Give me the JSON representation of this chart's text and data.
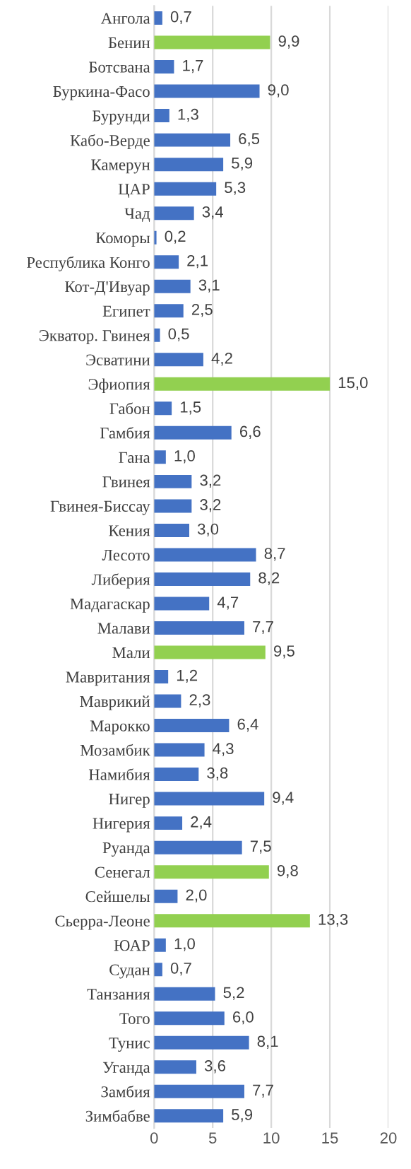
{
  "chart_data": {
    "type": "bar",
    "orientation": "horizontal",
    "categories": [
      "Ангола",
      "Бенин",
      "Ботсвана",
      "Буркина-Фасо",
      "Бурунди",
      "Кабо-Верде",
      "Камерун",
      "ЦАР",
      "Чад",
      "Коморы",
      "Республика Конго",
      "Кот-Д'Ивуар",
      "Египет",
      "Экватор. Гвинея",
      "Эсватини",
      "Эфиопия",
      "Габон",
      "Гамбия",
      "Гана",
      "Гвинея",
      "Гвинея-Биссау",
      "Кения",
      "Лесото",
      "Либерия",
      "Мадагаскар",
      "Малави",
      "Мали",
      "Мавритания",
      "Маврикий",
      "Марокко",
      "Мозамбик",
      "Намибия",
      "Нигер",
      "Нигерия",
      "Руанда",
      "Сенегал",
      "Сейшелы",
      "Сьерра-Леоне",
      "ЮАР",
      "Судан",
      "Танзания",
      "Того",
      "Тунис",
      "Уганда",
      "Замбия",
      "Зимбабве"
    ],
    "values": [
      0.7,
      9.9,
      1.7,
      9.0,
      1.3,
      6.5,
      5.9,
      5.3,
      3.4,
      0.2,
      2.1,
      3.1,
      2.5,
      0.5,
      4.2,
      15.0,
      1.5,
      6.6,
      1.0,
      3.2,
      3.2,
      3.0,
      8.7,
      8.2,
      4.7,
      7.7,
      9.5,
      1.2,
      2.3,
      6.4,
      4.3,
      3.8,
      9.4,
      2.4,
      7.5,
      9.8,
      2.0,
      13.3,
      1.0,
      0.7,
      5.2,
      6.0,
      8.1,
      3.6,
      7.7,
      5.9
    ],
    "value_labels": [
      "0,7",
      "9,9",
      "1,7",
      "9,0",
      "1,3",
      "6,5",
      "5,9",
      "5,3",
      "3,4",
      "0,2",
      "2,1",
      "3,1",
      "2,5",
      "0,5",
      "4,2",
      "15,0",
      "1,5",
      "6,6",
      "1,0",
      "3,2",
      "3,2",
      "3,0",
      "8,7",
      "8,2",
      "4,7",
      "7,7",
      "9,5",
      "1,2",
      "2,3",
      "6,4",
      "4,3",
      "3,8",
      "9,4",
      "2,4",
      "7,5",
      "9,8",
      "2,0",
      "13,3",
      "1,0",
      "0,7",
      "5,2",
      "6,0",
      "8,1",
      "3,6",
      "7,7",
      "5,9"
    ],
    "colors": [
      "#4472c4",
      "#92d050",
      "#4472c4",
      "#4472c4",
      "#4472c4",
      "#4472c4",
      "#4472c4",
      "#4472c4",
      "#4472c4",
      "#4472c4",
      "#4472c4",
      "#4472c4",
      "#4472c4",
      "#4472c4",
      "#4472c4",
      "#92d050",
      "#4472c4",
      "#4472c4",
      "#4472c4",
      "#4472c4",
      "#4472c4",
      "#4472c4",
      "#4472c4",
      "#4472c4",
      "#4472c4",
      "#4472c4",
      "#92d050",
      "#4472c4",
      "#4472c4",
      "#4472c4",
      "#4472c4",
      "#4472c4",
      "#4472c4",
      "#4472c4",
      "#4472c4",
      "#92d050",
      "#4472c4",
      "#92d050",
      "#4472c4",
      "#4472c4",
      "#4472c4",
      "#4472c4",
      "#4472c4",
      "#4472c4",
      "#4472c4",
      "#4472c4"
    ],
    "xlim": [
      0,
      20
    ],
    "xticks": [
      0,
      5,
      10,
      15,
      20
    ],
    "grid": "x",
    "legend": false
  }
}
